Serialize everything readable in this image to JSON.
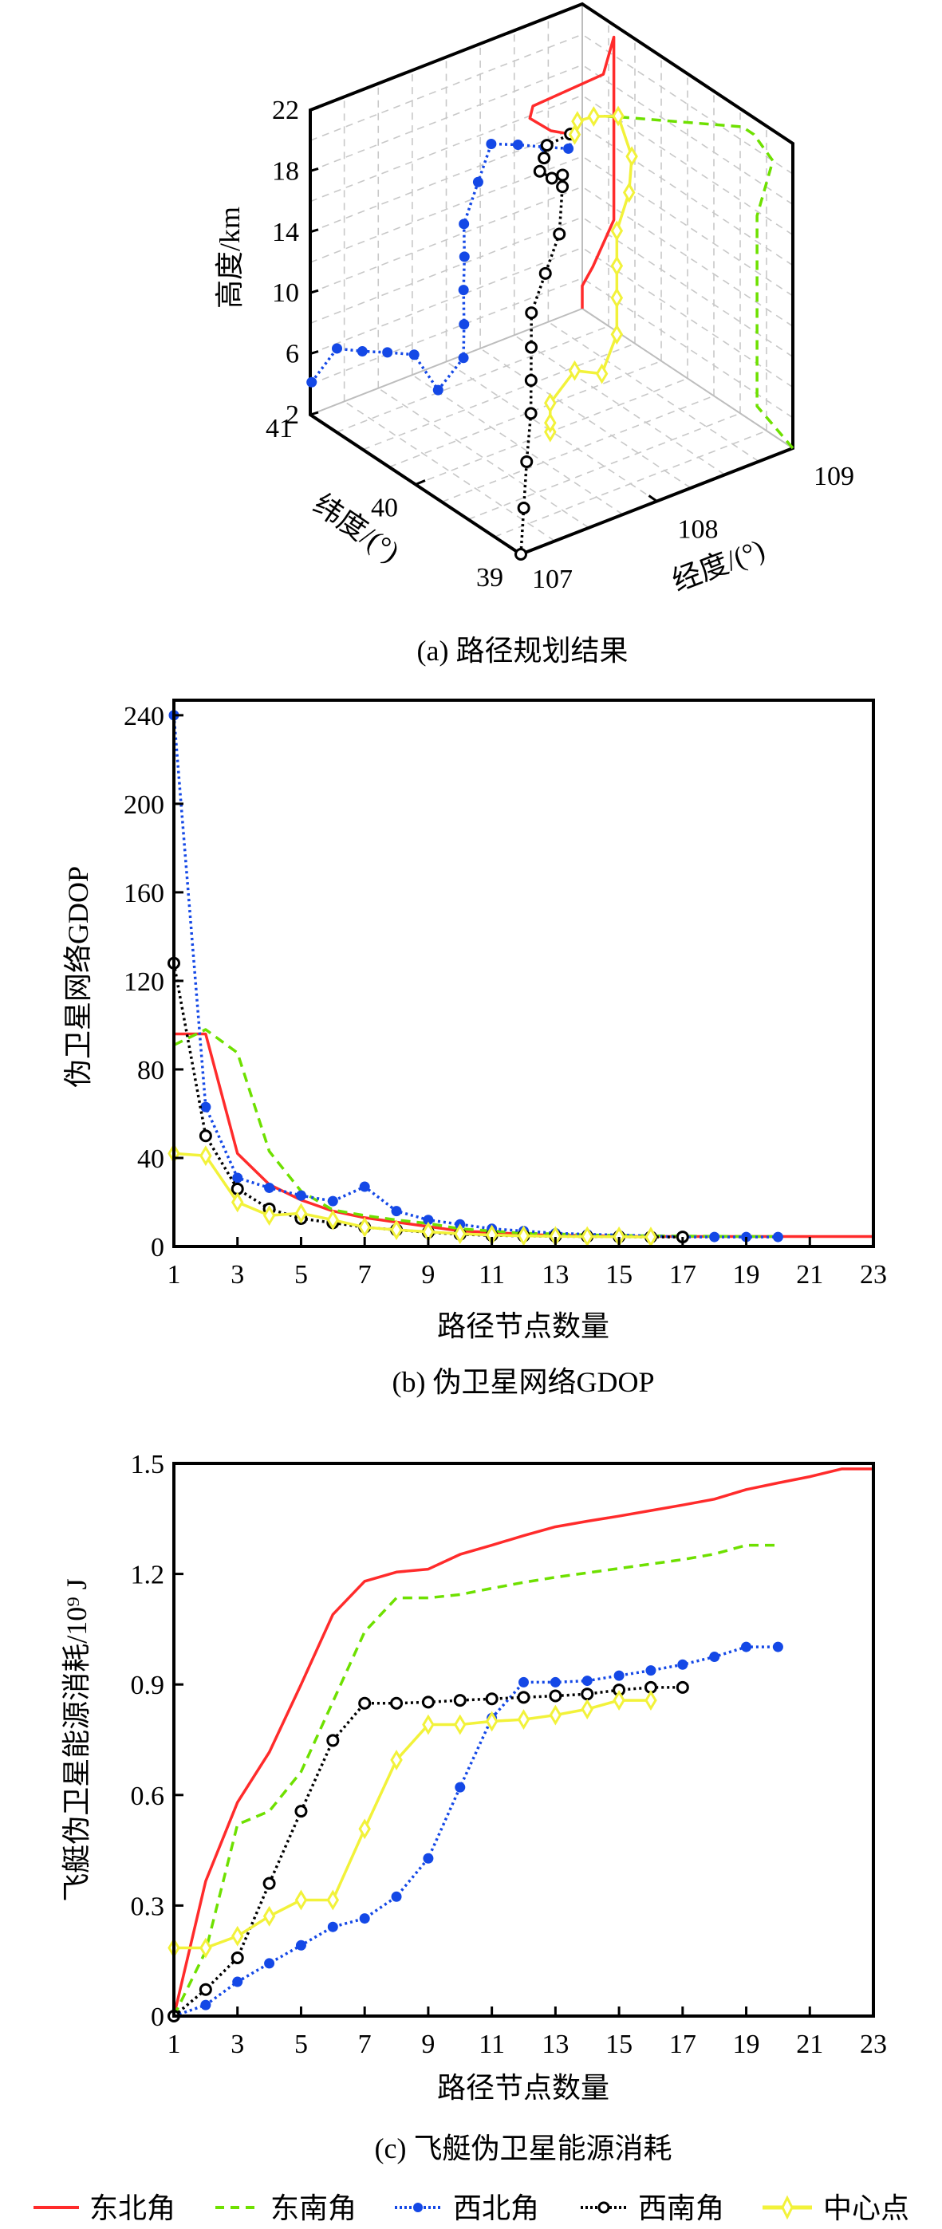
{
  "colors": {
    "northeast": "#ff2b2b",
    "southeast": "#6ee000",
    "northwest": "#1448e6",
    "southwest": "#000000",
    "center": "#f2f23a",
    "grid": "#c8c8c8",
    "axis": "#000000"
  },
  "legend": [
    {
      "key": "northeast",
      "label": "东北角"
    },
    {
      "key": "southeast",
      "label": "东南角"
    },
    {
      "key": "northwest",
      "label": "西北角"
    },
    {
      "key": "southwest",
      "label": "西南角"
    },
    {
      "key": "center",
      "label": "中心点"
    }
  ],
  "chart_data": [
    {
      "type": "line3d",
      "caption": "(a) 路径规划结果",
      "xlabel": "经度/(°)",
      "ylabel": "纬度/(°)",
      "zlabel": "高度/km",
      "xlim": [
        107,
        109
      ],
      "ylim": [
        39,
        41
      ],
      "zlim": [
        2,
        22
      ],
      "xticks": [
        "107",
        "108",
        "109"
      ],
      "yticks": [
        "39",
        "40",
        "41"
      ],
      "zticks": [
        "2",
        "6",
        "10",
        "14",
        "18",
        "22"
      ],
      "grid": true,
      "series": [
        {
          "name": "东北角",
          "key": "northeast",
          "points": [
            [
              109,
              41,
              2
            ],
            [
              109,
              41,
              3.5
            ],
            [
              109,
              40.9,
              5.2
            ],
            [
              109,
              40.7,
              9.2
            ],
            [
              109,
              40.7,
              16.2
            ],
            [
              109,
              40.7,
              20.1
            ],
            [
              109,
              40.7,
              21.2
            ],
            [
              109,
              40.8,
              18.3
            ],
            [
              108.25,
              40.5,
              20.2
            ],
            [
              108.15,
              40.4,
              20.2
            ],
            [
              108.15,
              40.2,
              20.3
            ],
            [
              108.1,
              39.95,
              21.4
            ]
          ]
        },
        {
          "name": "东南角",
          "key": "southeast",
          "points": [
            [
              109,
              39,
              2
            ],
            [
              109,
              39.14,
              2.5
            ],
            [
              109,
              39.34,
              3.2
            ],
            [
              109,
              39.34,
              15.7
            ],
            [
              109,
              39.19,
              20.0
            ],
            [
              109,
              39.37,
              20.9
            ],
            [
              109,
              39.48,
              20.9
            ],
            [
              108.43,
              39.9,
              21.6
            ],
            [
              108.25,
              39.95,
              22.1
            ]
          ]
        },
        {
          "name": "西北角",
          "key": "northwest",
          "points": [
            [
              107.01,
              41,
              4.1
            ],
            [
              107.15,
              40.94,
              6.1
            ],
            [
              107.29,
              40.88,
              5.7
            ],
            [
              107.42,
              40.81,
              5.5
            ],
            [
              107.57,
              40.75,
              5.1
            ],
            [
              107.7,
              40.69,
              2.6
            ],
            [
              107.84,
              40.63,
              4.5
            ],
            [
              107.79,
              40.56,
              7.2
            ],
            [
              107.74,
              40.5,
              9.9
            ],
            [
              107.7,
              40.44,
              12.5
            ],
            [
              107.65,
              40.38,
              15.1
            ],
            [
              107.7,
              40.31,
              18.0
            ],
            [
              107.75,
              40.25,
              20.6
            ],
            [
              107.9,
              40.19,
              20.3
            ],
            [
              108.05,
              40.13,
              19.9
            ],
            [
              108.17,
              40.06,
              19.7
            ],
            [
              108.17,
              40,
              20.9
            ]
          ]
        },
        {
          "name": "西南角",
          "key": "southwest",
          "points": [
            [
              107,
              39,
              2
            ],
            [
              107.06,
              39.05,
              4.6
            ],
            [
              107.12,
              39.1,
              7.2
            ],
            [
              107.19,
              39.15,
              9.9
            ],
            [
              107.23,
              39.2,
              11.7
            ],
            [
              107.27,
              39.25,
              13.5
            ],
            [
              107.31,
              39.3,
              15.4
            ],
            [
              107.49,
              39.4,
              16.9
            ],
            [
              107.67,
              39.5,
              18.4
            ],
            [
              107.77,
              39.6,
              20.7
            ],
            [
              107.81,
              39.65,
              21.1
            ],
            [
              107.77,
              39.7,
              20.8
            ],
            [
              107.72,
              39.75,
              21.2
            ],
            [
              107.79,
              39.8,
              21.6
            ],
            [
              107.85,
              39.85,
              22.0
            ],
            [
              108.1,
              39.95,
              21.4
            ]
          ]
        },
        {
          "name": "中心点",
          "key": "center",
          "points": [
            [
              107.99,
              40,
              2
            ],
            [
              107.99,
              40,
              2.6
            ],
            [
              107.99,
              40,
              3.9
            ],
            [
              108.17,
              40,
              5.4
            ],
            [
              108.37,
              40,
              4.5
            ],
            [
              108.48,
              40,
              6.7
            ],
            [
              108.48,
              40,
              9.1
            ],
            [
              108.48,
              40,
              11.2
            ],
            [
              108.48,
              40,
              13.5
            ],
            [
              108.57,
              40,
              15.7
            ],
            [
              108.59,
              40,
              18.0
            ],
            [
              108.49,
              40,
              21.0
            ],
            [
              108.31,
              40,
              21.6
            ],
            [
              108.19,
              40,
              21.7
            ],
            [
              108.17,
              40,
              20.9
            ]
          ]
        }
      ]
    },
    {
      "type": "line",
      "caption": "(b) 伪卫星网络GDOP",
      "xlabel": "路径节点数量",
      "ylabel": "伪卫星网络GDOP",
      "xlim": [
        1,
        23
      ],
      "ylim": [
        0,
        246.8
      ],
      "xticks": [
        1,
        3,
        5,
        7,
        9,
        11,
        13,
        15,
        17,
        19,
        21,
        23
      ],
      "yticks": [
        0,
        40,
        80,
        120,
        160,
        200,
        240
      ],
      "ytick_labels": [
        "0",
        "40",
        "80",
        "120",
        "160",
        "200",
        "240"
      ],
      "xtick_labels": [
        "1",
        "3",
        "5",
        "7",
        "9",
        "11",
        "13",
        "15",
        "17",
        "19",
        "21",
        "23"
      ],
      "grid": false,
      "series": [
        {
          "name": "东北角",
          "key": "northeast",
          "values": [
            96,
            96,
            42,
            28,
            21,
            16,
            13,
            11,
            9,
            7,
            6.4,
            5.5,
            5,
            5,
            4.5,
            4.5,
            4.5,
            4.5,
            4.5,
            4.5,
            4.5,
            4.5,
            4.5
          ]
        },
        {
          "name": "东南角",
          "key": "southeast",
          "values": [
            91,
            98,
            87.5,
            43,
            25,
            16.5,
            14,
            12,
            10.4,
            8,
            7,
            6,
            5.7,
            5.2,
            5,
            4.8,
            4.7,
            4.6,
            4.5,
            4.5
          ]
        },
        {
          "name": "西北角",
          "key": "northwest",
          "values": [
            240,
            63,
            31,
            26.5,
            23,
            20.5,
            27,
            16,
            12,
            10,
            8,
            7,
            6,
            5.5,
            5.2,
            4.7,
            4.3,
            4.3,
            4.3,
            4.3
          ]
        },
        {
          "name": "西南角",
          "key": "southwest",
          "values": [
            128,
            50,
            26,
            17,
            12.6,
            10.7,
            8.7,
            7.5,
            6.4,
            5.5,
            5,
            4.8,
            4.6,
            4.5,
            4.4,
            4.3,
            4.3
          ]
        },
        {
          "name": "中心点",
          "key": "center",
          "values": [
            42,
            41,
            20,
            14,
            15,
            12,
            8.7,
            7.5,
            6.6,
            5.7,
            5.2,
            4.8,
            4.6,
            4.5,
            4.4,
            4.3
          ]
        }
      ]
    },
    {
      "type": "line",
      "caption": "(c) 飞艇伪卫星能源消耗",
      "xlabel": "路径节点数量",
      "ylabel": "飞艇伪卫星能源消耗/10⁹ J",
      "xlim": [
        1,
        23
      ],
      "ylim": [
        0,
        1.5
      ],
      "xticks": [
        1,
        3,
        5,
        7,
        9,
        11,
        13,
        15,
        17,
        19,
        21,
        23
      ],
      "yticks": [
        0,
        0.3,
        0.6,
        0.9,
        1.2,
        1.5
      ],
      "ytick_labels": [
        "0",
        "0.3",
        "0.6",
        "0.9",
        "1.2",
        "1.5"
      ],
      "xtick_labels": [
        "1",
        "3",
        "5",
        "7",
        "9",
        "11",
        "13",
        "15",
        "17",
        "19",
        "21",
        "23"
      ],
      "grid": false,
      "series": [
        {
          "name": "东北角",
          "key": "northeast",
          "values": [
            0,
            0.366,
            0.58,
            0.716,
            0.9,
            1.09,
            1.18,
            1.205,
            1.213,
            1.253,
            1.278,
            1.304,
            1.328,
            1.343,
            1.357,
            1.372,
            1.387,
            1.403,
            1.429,
            1.447,
            1.464,
            1.485,
            1.485
          ]
        },
        {
          "name": "东南角",
          "key": "southeast",
          "values": [
            0,
            0.176,
            0.52,
            0.556,
            0.663,
            0.853,
            1.043,
            1.135,
            1.135,
            1.144,
            1.161,
            1.177,
            1.191,
            1.203,
            1.215,
            1.227,
            1.239,
            1.254,
            1.278,
            1.278
          ]
        },
        {
          "name": "西北角",
          "key": "northwest",
          "values": [
            0,
            0.03,
            0.093,
            0.143,
            0.192,
            0.242,
            0.265,
            0.324,
            0.428,
            0.621,
            0.809,
            0.906,
            0.906,
            0.91,
            0.924,
            0.938,
            0.954,
            0.975,
            1.002,
            1.002
          ]
        },
        {
          "name": "西南角",
          "key": "southwest",
          "values": [
            0,
            0.072,
            0.158,
            0.36,
            0.556,
            0.748,
            0.849,
            0.849,
            0.852,
            0.857,
            0.861,
            0.865,
            0.869,
            0.874,
            0.885,
            0.892,
            0.892
          ]
        },
        {
          "name": "中心点",
          "key": "center",
          "values": [
            0.185,
            0.185,
            0.217,
            0.271,
            0.315,
            0.315,
            0.508,
            0.695,
            0.791,
            0.791,
            0.8,
            0.805,
            0.817,
            0.833,
            0.857,
            0.857
          ]
        }
      ]
    }
  ]
}
